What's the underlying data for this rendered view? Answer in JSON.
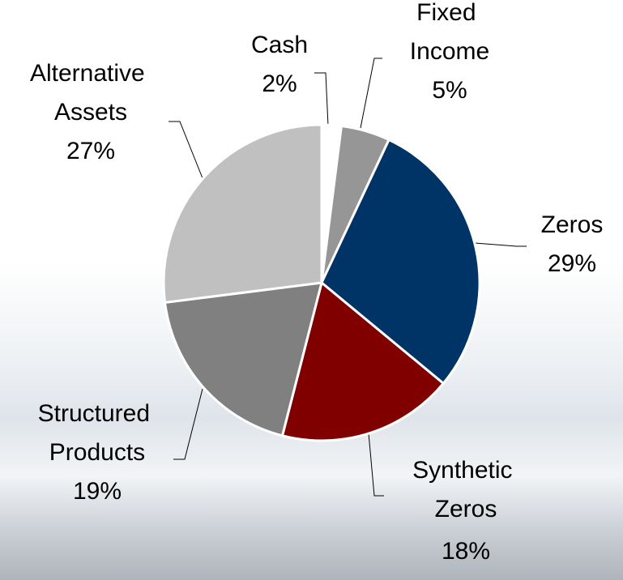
{
  "chart_data": {
    "type": "pie",
    "categories": [
      "Cash",
      "Fixed Income",
      "Zeros",
      "Synthetic Zeros",
      "Structured Products",
      "Alternative Assets"
    ],
    "values": [
      2,
      5,
      29,
      18,
      19,
      27
    ],
    "value_labels": [
      "2%",
      "5%",
      "29%",
      "18%",
      "19%",
      "27%"
    ],
    "colors": [
      "#ffffff",
      "#969696",
      "#003366",
      "#800000",
      "#808080",
      "#c0c0c0"
    ]
  }
}
